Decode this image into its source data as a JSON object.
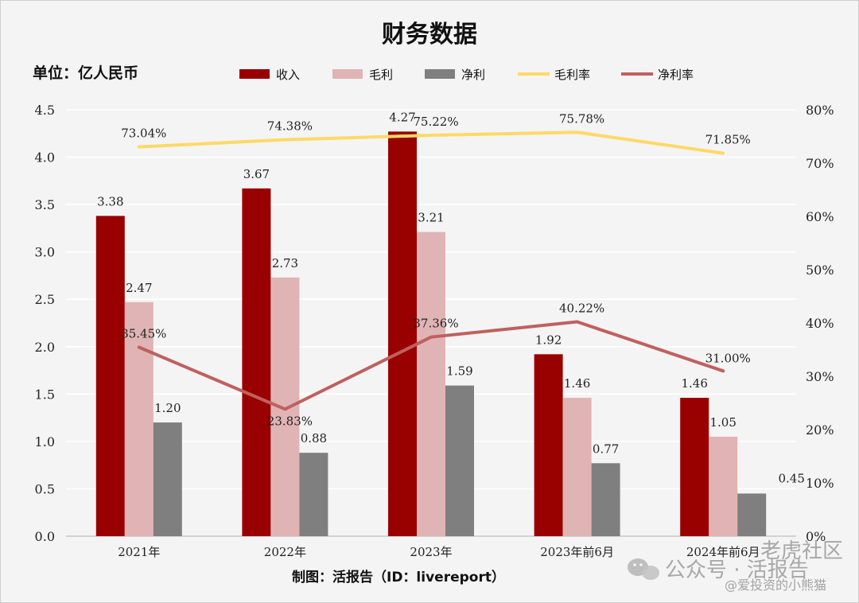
{
  "chart_data": {
    "type": "bar",
    "title": "财务数据",
    "unit_label": "单位：亿人民币",
    "categories": [
      "2021年",
      "2022年",
      "2023年",
      "2023年前6月",
      "2024年前6月"
    ],
    "bar_series": [
      {
        "name": "收入",
        "color": "#990000",
        "values": [
          3.38,
          3.67,
          4.27,
          1.92,
          1.46
        ],
        "labels": [
          "3.38",
          "3.67",
          "4.27",
          "1.92",
          "1.46"
        ]
      },
      {
        "name": "毛利",
        "color": "#e0b4b4",
        "values": [
          2.47,
          2.73,
          3.21,
          1.46,
          1.05
        ],
        "labels": [
          "2.47",
          "2.73",
          "3.21",
          "1.46",
          "1.05"
        ]
      },
      {
        "name": "净利",
        "color": "#7f7f7f",
        "values": [
          1.2,
          0.88,
          1.59,
          0.77,
          0.45
        ],
        "labels": [
          "1.20",
          "0.88",
          "1.59",
          "0.77",
          "0.45"
        ]
      }
    ],
    "line_series": [
      {
        "name": "毛利率",
        "color": "#ffd966",
        "values": [
          73.04,
          74.38,
          75.22,
          75.78,
          71.85
        ],
        "labels": [
          "73.04%",
          "74.38%",
          "75.22%",
          "75.78%",
          "71.85%"
        ]
      },
      {
        "name": "净利率",
        "color": "#c0605f",
        "values": [
          35.45,
          23.83,
          37.36,
          40.22,
          31.0
        ],
        "labels": [
          "35.45%",
          "23.83%",
          "37.36%",
          "40.22%",
          "31.00%"
        ]
      }
    ],
    "y_left": {
      "min": 0,
      "max": 4.5,
      "ticks": [
        "0.0",
        "0.5",
        "1.0",
        "1.5",
        "2.0",
        "2.5",
        "3.0",
        "3.5",
        "4.0",
        "4.5"
      ]
    },
    "y_right": {
      "min": 0,
      "max": 80,
      "ticks": [
        "0%",
        "10%",
        "20%",
        "30%",
        "40%",
        "50%",
        "60%",
        "70%",
        "80%"
      ]
    },
    "grid": true,
    "legend_position": "top"
  },
  "credit": "制图：活报告（ID：livereport）",
  "watermark": {
    "main": "公众号 · 活报告",
    "community": "老虎社区",
    "handle": "@爱投资的小熊猫"
  }
}
